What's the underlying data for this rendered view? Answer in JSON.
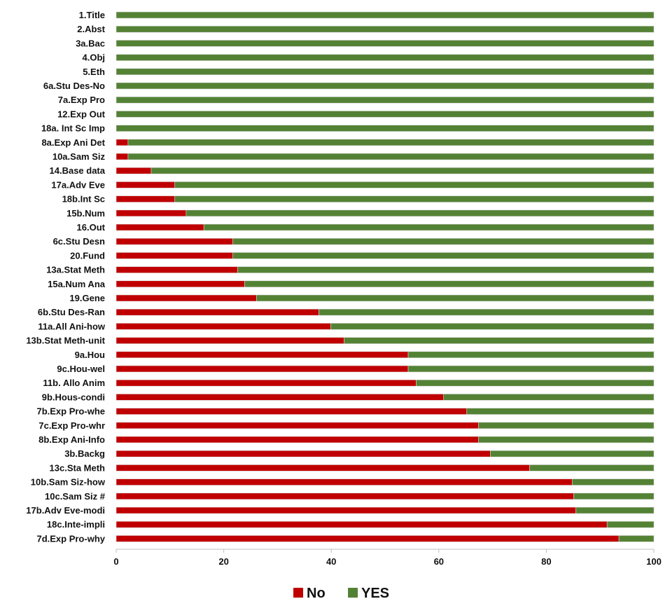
{
  "chart_data": {
    "type": "bar",
    "orientation": "horizontal",
    "stacked": true,
    "title": "",
    "xlabel": "",
    "ylabel": "",
    "xlim": [
      0,
      100
    ],
    "xticks": [
      0,
      20,
      40,
      60,
      80,
      100
    ],
    "grid": false,
    "legend_position": "bottom",
    "categories": [
      "1.Title",
      "2.Abst",
      "3a.Bac",
      "4.Obj",
      "5.Eth",
      "6a.Stu Des-No",
      "7a.Exp Pro",
      "12.Exp Out",
      "18a. Int Sc Imp",
      "8a.Exp Ani Det",
      "10a.Sam Siz",
      "14.Base data",
      "17a.Adv Eve",
      "18b.Int  Sc",
      "15b.Num",
      "16.Out",
      "6c.Stu Desn",
      "20.Fund",
      "13a.Stat Meth",
      "15a.Num Ana",
      "19.Gene",
      "6b.Stu Des-Ran",
      "11a.All Ani-how",
      "13b.Stat Meth-unit",
      "9a.Hou",
      "9c.Hou-wel",
      "11b. Allo Anim",
      "9b.Hous-condi",
      "7b.Exp Pro-whe",
      "7c.Exp Pro-whr",
      "8b.Exp Ani-Info",
      "3b.Backg",
      "13c.Sta Meth",
      "10b.Sam Siz-how",
      "10c.Sam Siz #",
      "17b.Adv Eve-modi",
      "18c.Inte-impli",
      "7d.Exp Pro-why"
    ],
    "series": [
      {
        "name": "No",
        "color": "#c00000",
        "values": [
          0,
          0,
          0,
          0,
          0,
          0,
          0,
          0,
          0,
          2.2,
          2.2,
          6.5,
          10.9,
          10.9,
          13.0,
          16.3,
          21.7,
          21.7,
          22.6,
          23.9,
          26.1,
          37.7,
          39.9,
          42.4,
          54.3,
          54.3,
          55.8,
          60.9,
          65.2,
          67.4,
          67.4,
          69.6,
          76.9,
          84.8,
          85.1,
          85.5,
          91.3,
          93.5
        ]
      },
      {
        "name": "YES",
        "color": "#548235",
        "values": [
          100,
          100,
          100,
          100,
          100,
          100,
          100,
          100,
          100,
          97.8,
          97.8,
          93.5,
          89.1,
          89.1,
          87.0,
          83.7,
          78.3,
          78.3,
          77.4,
          76.1,
          73.9,
          62.3,
          60.1,
          57.6,
          45.7,
          45.7,
          44.2,
          39.1,
          34.8,
          32.6,
          32.6,
          30.4,
          23.1,
          15.2,
          14.9,
          14.5,
          8.7,
          6.5
        ]
      }
    ]
  }
}
